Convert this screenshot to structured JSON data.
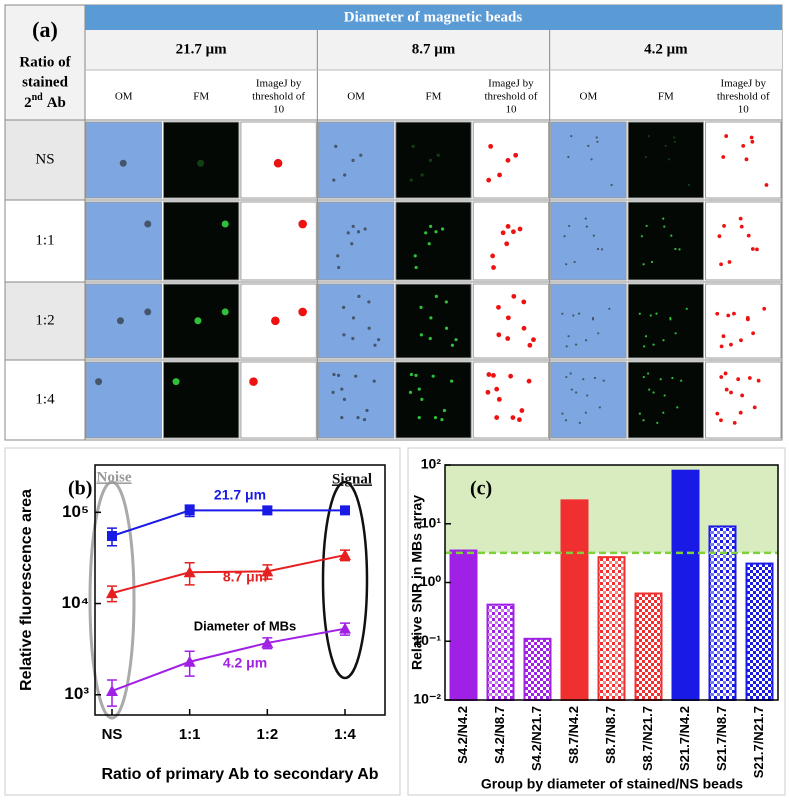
{
  "table": {
    "panel_label": "(a)",
    "row_header": {
      "line1": "Ratio of",
      "line2": "stained",
      "ordinal": "2",
      "suffix": "nd",
      "tail": "Ab"
    },
    "title": "Diameter of magnetic beads",
    "groups": [
      "21.7 μm",
      "8.7 μm",
      "4.2 μm"
    ],
    "sub_columns": [
      [
        "OM"
      ],
      [
        "FM"
      ],
      [
        "ImageJ by",
        "threshold of",
        "10"
      ]
    ],
    "rows": [
      "NS",
      "1:1",
      "1:2",
      "1:4"
    ]
  },
  "chart_data": [
    {
      "type": "line",
      "panel_label": "(b)",
      "x_label": "Ratio of primary Ab to secondary Ab",
      "y_label": "Relative fluorescence area",
      "categories": [
        "NS",
        "1:1",
        "1:2",
        "1:4"
      ],
      "log_y": true,
      "ylim": [
        600,
        330000
      ],
      "yticks": [
        {
          "value": 1000,
          "label": "10³"
        },
        {
          "value": 10000,
          "label": "10⁴"
        },
        {
          "value": 100000,
          "label": "10⁵"
        }
      ],
      "series": [
        {
          "name": "21.7 μm",
          "color": "#1a1ae6",
          "marker": "square",
          "values": [
            55000,
            105000,
            105000,
            105000
          ],
          "errors": [
            12000,
            15000,
            10000,
            5000
          ]
        },
        {
          "name": "8.7 μm",
          "color": "#e62020",
          "marker": "triangle",
          "values": [
            13000,
            22000,
            22500,
            34000
          ],
          "errors": [
            2500,
            6000,
            4000,
            4500
          ]
        },
        {
          "name": "4.2 μm",
          "color": "#a020e6",
          "marker": "triangle",
          "values": [
            1100,
            2300,
            3700,
            5300
          ],
          "errors": [
            350,
            700,
            500,
            800
          ]
        }
      ],
      "annotations": {
        "noise": "Noise",
        "signal": "Signal",
        "diameter": "Diameter of  MBs"
      }
    },
    {
      "type": "bar",
      "panel_label": "(c)",
      "x_label": "Group by diameter of stained/NS beads",
      "y_label": "Relative SNR in MBs array",
      "log_y": true,
      "categories": [
        "S4.2/N4.2",
        "S4.2/N8.7",
        "S4.2/N21.7",
        "S8.7/N4.2",
        "S8.7/N8.7",
        "S8.7/N21.7",
        "S21.7/N4.2",
        "S21.7/N8.7",
        "S21.7/N21.7"
      ],
      "values": [
        3.5,
        0.42,
        0.11,
        25,
        2.7,
        0.65,
        80,
        9,
        2.1
      ],
      "colors": [
        "#a020e6",
        "#a020e6",
        "#a020e6",
        "#f03030",
        "#f03030",
        "#f03030",
        "#1a1ae6",
        "#1a1ae6",
        "#1a1ae6"
      ],
      "patterns": [
        "solid",
        "hatch",
        "check",
        "solid",
        "hatch",
        "check",
        "solid",
        "hatch",
        "check"
      ],
      "threshold": 3.2,
      "ylim": [
        0.01,
        100
      ],
      "yticks": [
        {
          "value": 0.01,
          "label": "10⁻²"
        },
        {
          "value": 0.1,
          "label": "10⁻¹"
        },
        {
          "value": 1,
          "label": "10⁰"
        },
        {
          "value": 10,
          "label": "10¹"
        },
        {
          "value": 100,
          "label": "10²"
        }
      ]
    }
  ]
}
